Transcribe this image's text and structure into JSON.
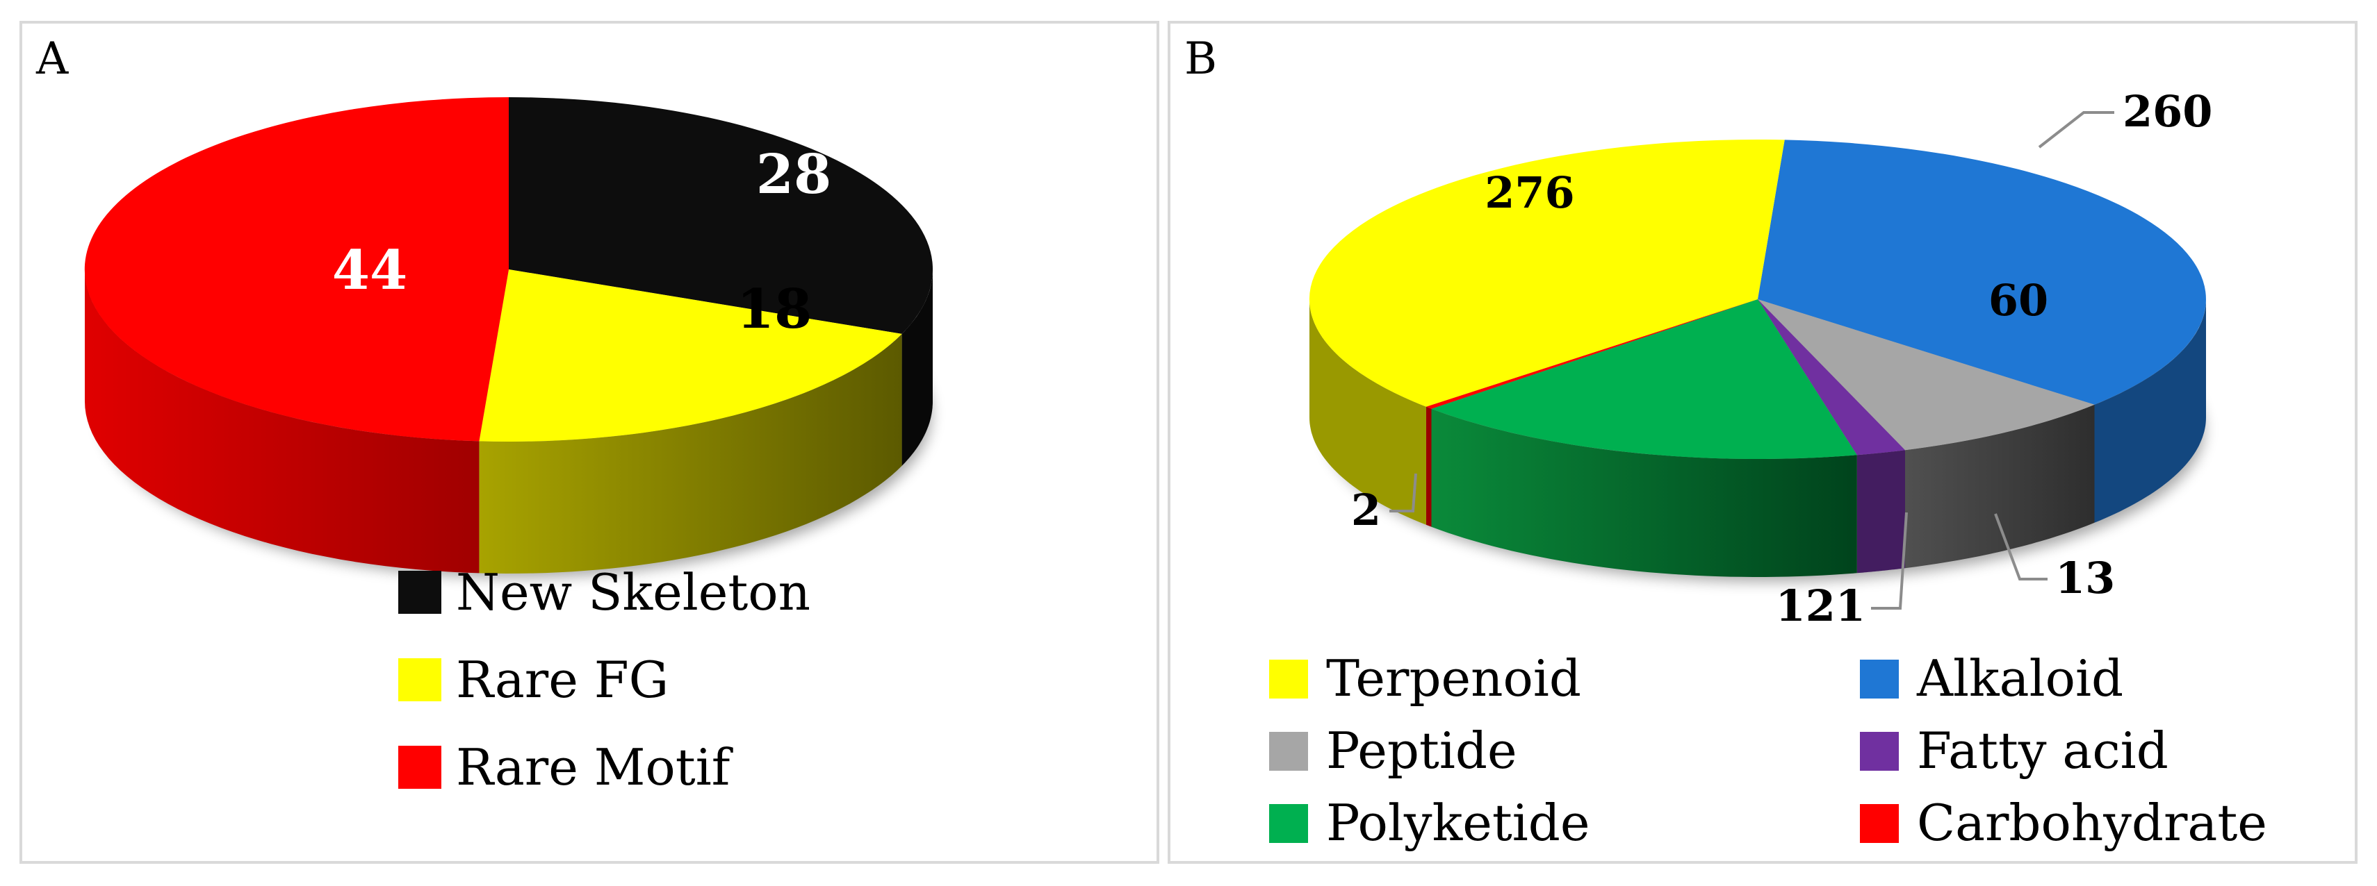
{
  "chart_data": [
    {
      "type": "pie",
      "panel_label": "A",
      "categories": [
        "New Skeleton",
        "Rare FG",
        "Rare Motif"
      ],
      "values": [
        28,
        18,
        44
      ],
      "colors": [
        "#0d0d0d",
        "#ffff00",
        "#ff0000"
      ],
      "legend_position": "bottom",
      "three_d": true
    },
    {
      "type": "pie",
      "panel_label": "B",
      "categories": [
        "Terpenoid",
        "Alkaloid",
        "Peptide",
        "Fatty acid",
        "Polyketide",
        "Carbohydrate"
      ],
      "values": [
        276,
        260,
        60,
        13,
        121,
        2
      ],
      "colors": [
        "#ffff00",
        "#1f77d4",
        "#a6a6a6",
        "#7030a0",
        "#00b050",
        "#ff0000"
      ],
      "legend_position": "bottom",
      "three_d": true
    }
  ]
}
